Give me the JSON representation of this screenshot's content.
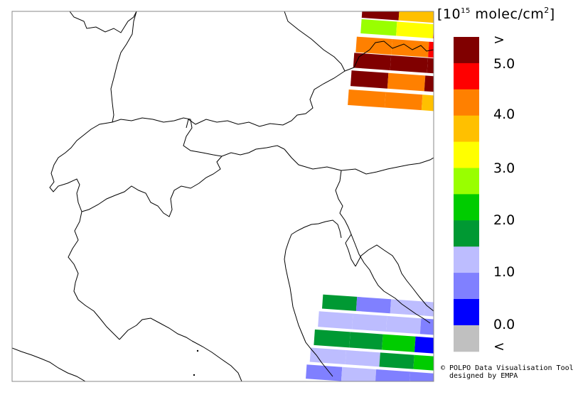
{
  "legend": {
    "unit_base": "10",
    "unit_exp": "15",
    "unit_text": "molec/cm",
    "unit_exp2": "2",
    "colors": [
      "#800000",
      "#ff0000",
      "#ff8000",
      "#ffc000",
      "#ffff00",
      "#99ff00",
      "#00cc00",
      "#009933",
      "#bdbdff",
      "#8080ff",
      "#0000ff",
      "#c0c0c0"
    ],
    "labels": [
      ">",
      "5.0",
      "4.0",
      "3.0",
      "2.0",
      "1.0",
      "0.0",
      "<"
    ]
  },
  "credit": {
    "line1": "© POLPO Data Visualisation Tool",
    "line2": "designed by EMPA"
  }
}
